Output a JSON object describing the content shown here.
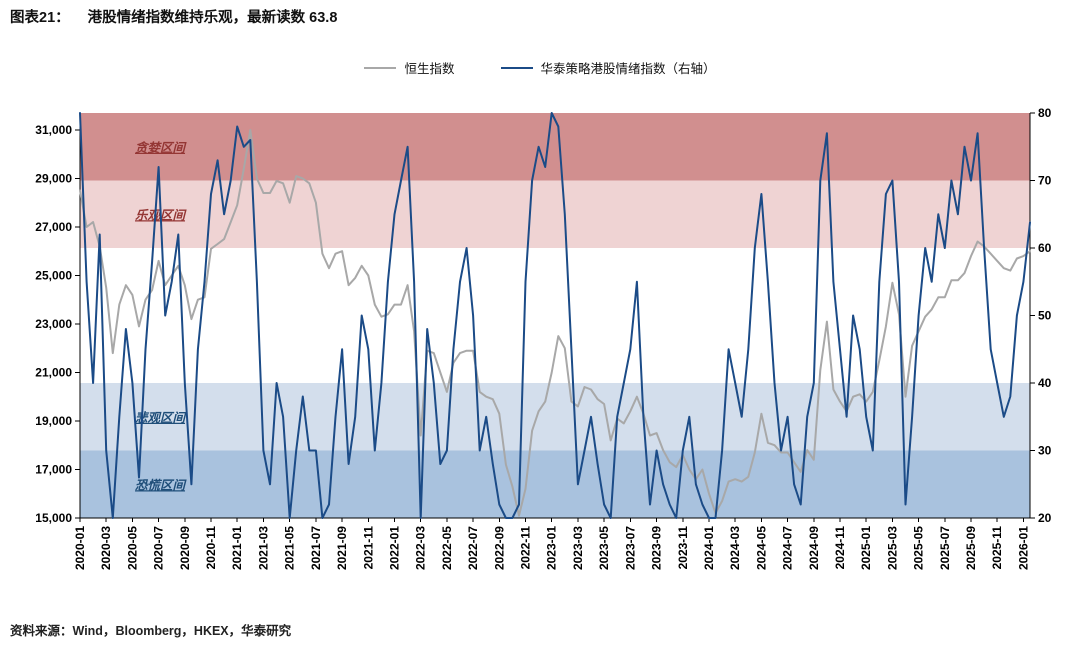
{
  "header": {
    "prefix": "图表21：",
    "title": "港股情绪指数维持乐观，最新读数 63.8"
  },
  "legend": [
    {
      "label": "恒生指数",
      "color": "#a8a8a8"
    },
    {
      "label": "华泰策略港股情绪指数（右轴）",
      "color": "#1b4b87"
    }
  ],
  "footer": {
    "source_label": "资料来源：",
    "source_text": "Wind，Bloomberg，HKEX，华泰研究"
  },
  "chart_data": {
    "type": "line",
    "title": "港股情绪指数维持乐观，最新读数 63.8",
    "latest_reading": 63.8,
    "x_start": "2020-01",
    "x_end": "2026-01",
    "points_per_month": 2,
    "x_tick_labels": [
      "2020-01",
      "2020-03",
      "2020-05",
      "2020-07",
      "2020-09",
      "2020-11",
      "2021-01",
      "2021-03",
      "2021-05",
      "2021-07",
      "2021-09",
      "2021-11",
      "2022-01",
      "2022-03",
      "2022-05",
      "2022-07",
      "2022-09",
      "2022-11",
      "2023-01",
      "2023-03",
      "2023-05",
      "2023-07",
      "2023-09",
      "2023-11",
      "2024-01",
      "2024-03",
      "2024-05",
      "2024-07",
      "2024-09",
      "2024-11",
      "2025-01",
      "2025-03",
      "2025-05",
      "2025-07",
      "2025-09",
      "2025-11",
      "2026-01"
    ],
    "left_axis": {
      "label": "恒生指数",
      "min": 15000,
      "max": 31700,
      "tick_values": [
        15000,
        17000,
        19000,
        21000,
        23000,
        25000,
        27000,
        29000,
        31000
      ],
      "tick_labels": [
        "15,000",
        "17,000",
        "19,000",
        "21,000",
        "23,000",
        "25,000",
        "27,000",
        "29,000",
        "31,000"
      ]
    },
    "right_axis": {
      "label": "华泰策略港股情绪指数（右轴）",
      "min": 20,
      "max": 80,
      "tick_values": [
        20,
        30,
        40,
        50,
        60,
        70,
        80
      ],
      "tick_labels": [
        "20",
        "30",
        "40",
        "50",
        "60",
        "70",
        "80"
      ]
    },
    "bands": [
      {
        "name": "greed-zone",
        "label": "贪婪区间",
        "from": 70,
        "to": 80,
        "color": "#d18f8f",
        "label_color": "#943634"
      },
      {
        "name": "optimism-zone",
        "label": "乐观区间",
        "from": 60,
        "to": 70,
        "color": "#efd3d3",
        "label_color": "#943634"
      },
      {
        "name": "neutral-zone",
        "label": "",
        "from": 40,
        "to": 60,
        "color": "#ffffff",
        "label_color": ""
      },
      {
        "name": "pessimism-zone",
        "label": "悲观区间",
        "from": 30,
        "to": 40,
        "color": "#d3deec",
        "label_color": "#1f4e79"
      },
      {
        "name": "panic-zone",
        "label": "恐慌区间",
        "from": 20,
        "to": 30,
        "color": "#a9c2de",
        "label_color": "#1f4e79"
      }
    ],
    "series": [
      {
        "name": "恒生指数",
        "axis": "left",
        "color": "#a8a8a8",
        "values": [
          28500,
          27000,
          27200,
          26200,
          24500,
          21800,
          23800,
          24600,
          24200,
          22900,
          24000,
          24400,
          25600,
          24600,
          25000,
          25400,
          24600,
          23200,
          24000,
          24100,
          26100,
          26300,
          26500,
          27200,
          27900,
          29400,
          31000,
          29000,
          28400,
          28400,
          28900,
          28800,
          28000,
          29100,
          29000,
          28800,
          28000,
          25900,
          25300,
          25900,
          26000,
          24600,
          24900,
          25400,
          25000,
          23800,
          23300,
          23400,
          23800,
          23800,
          24600,
          22700,
          18400,
          21900,
          21800,
          21000,
          20200,
          21400,
          21800,
          21900,
          21900,
          20200,
          20000,
          19900,
          19300,
          17200,
          16300,
          15100,
          16200,
          18600,
          19400,
          19800,
          21000,
          22500,
          22000,
          19800,
          19600,
          20400,
          20300,
          19900,
          19700,
          18200,
          19100,
          18900,
          19400,
          20000,
          19300,
          18400,
          18500,
          17800,
          17300,
          17100,
          17600,
          17000,
          16600,
          17000,
          16000,
          15200,
          15700,
          16500,
          16600,
          16500,
          16700,
          17700,
          19300,
          18100,
          18000,
          17700,
          17700,
          17300,
          16900,
          17800,
          17400,
          21100,
          23100,
          20300,
          19800,
          19400,
          20000,
          20100,
          19800,
          20200,
          21500,
          22900,
          24700,
          23400,
          20000,
          22100,
          22700,
          23300,
          23600,
          24100,
          24100,
          24800,
          24800,
          25100,
          25800,
          26400,
          26200,
          25900,
          25600,
          25300,
          25200,
          25700,
          25800,
          26000
        ]
      },
      {
        "name": "华泰策略港股情绪指数（右轴）",
        "axis": "right",
        "color": "#1b4b87",
        "values": [
          80,
          55,
          40,
          62,
          30,
          20,
          35,
          48,
          40,
          26,
          45,
          58,
          72,
          50,
          55,
          62,
          40,
          25,
          45,
          55,
          68,
          73,
          65,
          70,
          78,
          75,
          76,
          55,
          30,
          25,
          40,
          35,
          20,
          30,
          38,
          30,
          30,
          20,
          22,
          35,
          45,
          28,
          35,
          50,
          45,
          30,
          40,
          55,
          65,
          70,
          75,
          55,
          20,
          48,
          40,
          28,
          30,
          45,
          55,
          60,
          50,
          30,
          35,
          28,
          22,
          20,
          20,
          22,
          55,
          70,
          75,
          72,
          80,
          78,
          65,
          45,
          25,
          30,
          35,
          28,
          22,
          20,
          35,
          40,
          45,
          55,
          35,
          22,
          30,
          25,
          22,
          20,
          30,
          35,
          25,
          22,
          20,
          20,
          30,
          45,
          40,
          35,
          45,
          60,
          68,
          55,
          40,
          30,
          35,
          25,
          22,
          35,
          40,
          70,
          77,
          55,
          45,
          35,
          50,
          45,
          35,
          30,
          55,
          68,
          70,
          55,
          22,
          35,
          50,
          60,
          55,
          65,
          60,
          70,
          65,
          75,
          70,
          77,
          60,
          45,
          40,
          35,
          38,
          50,
          55,
          63.8
        ]
      }
    ]
  }
}
